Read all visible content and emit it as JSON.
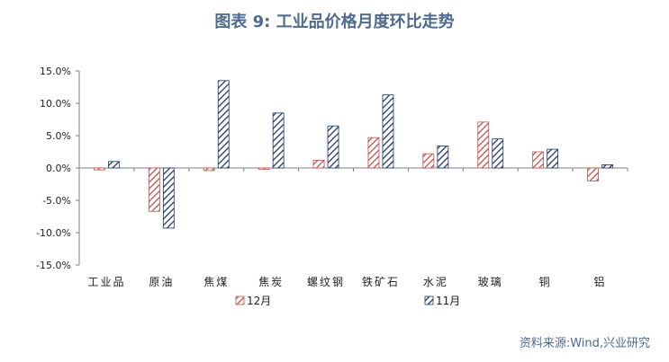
{
  "title": "图表 9:  工业品价格月度环比走势",
  "source": "资料来源:Wind,兴业研究",
  "colors": {
    "series_12": "#c0504d",
    "series_11": "#1f3864",
    "axis": "#808080",
    "title": "#4f6a8f"
  },
  "chart_data": {
    "type": "bar",
    "categories": [
      "工业品",
      "原油",
      "焦煤",
      "焦炭",
      "螺纹钢",
      "铁矿石",
      "水泥",
      "玻璃",
      "铜",
      "铝"
    ],
    "series": [
      {
        "name": "12月",
        "pattern": "diagonal-hatch",
        "values": [
          -0.3,
          -6.7,
          -0.4,
          -0.2,
          1.2,
          4.7,
          2.2,
          7.1,
          2.5,
          -2.0
        ]
      },
      {
        "name": "11月",
        "pattern": "diagonal-hatch",
        "values": [
          1.0,
          -9.3,
          13.5,
          8.5,
          6.5,
          11.3,
          3.4,
          4.5,
          2.9,
          0.5
        ]
      }
    ],
    "ylim": [
      -15,
      15
    ],
    "yticks": [
      15,
      10,
      5,
      0,
      -5,
      -10,
      -15
    ],
    "ytick_labels": [
      "15.0%",
      "10.0%",
      "5.0%",
      "0.0%",
      "-5.0%",
      "-10.0%",
      "-15.0%"
    ],
    "xlabel": "",
    "ylabel": "",
    "legend_position": "bottom",
    "grid": false
  }
}
